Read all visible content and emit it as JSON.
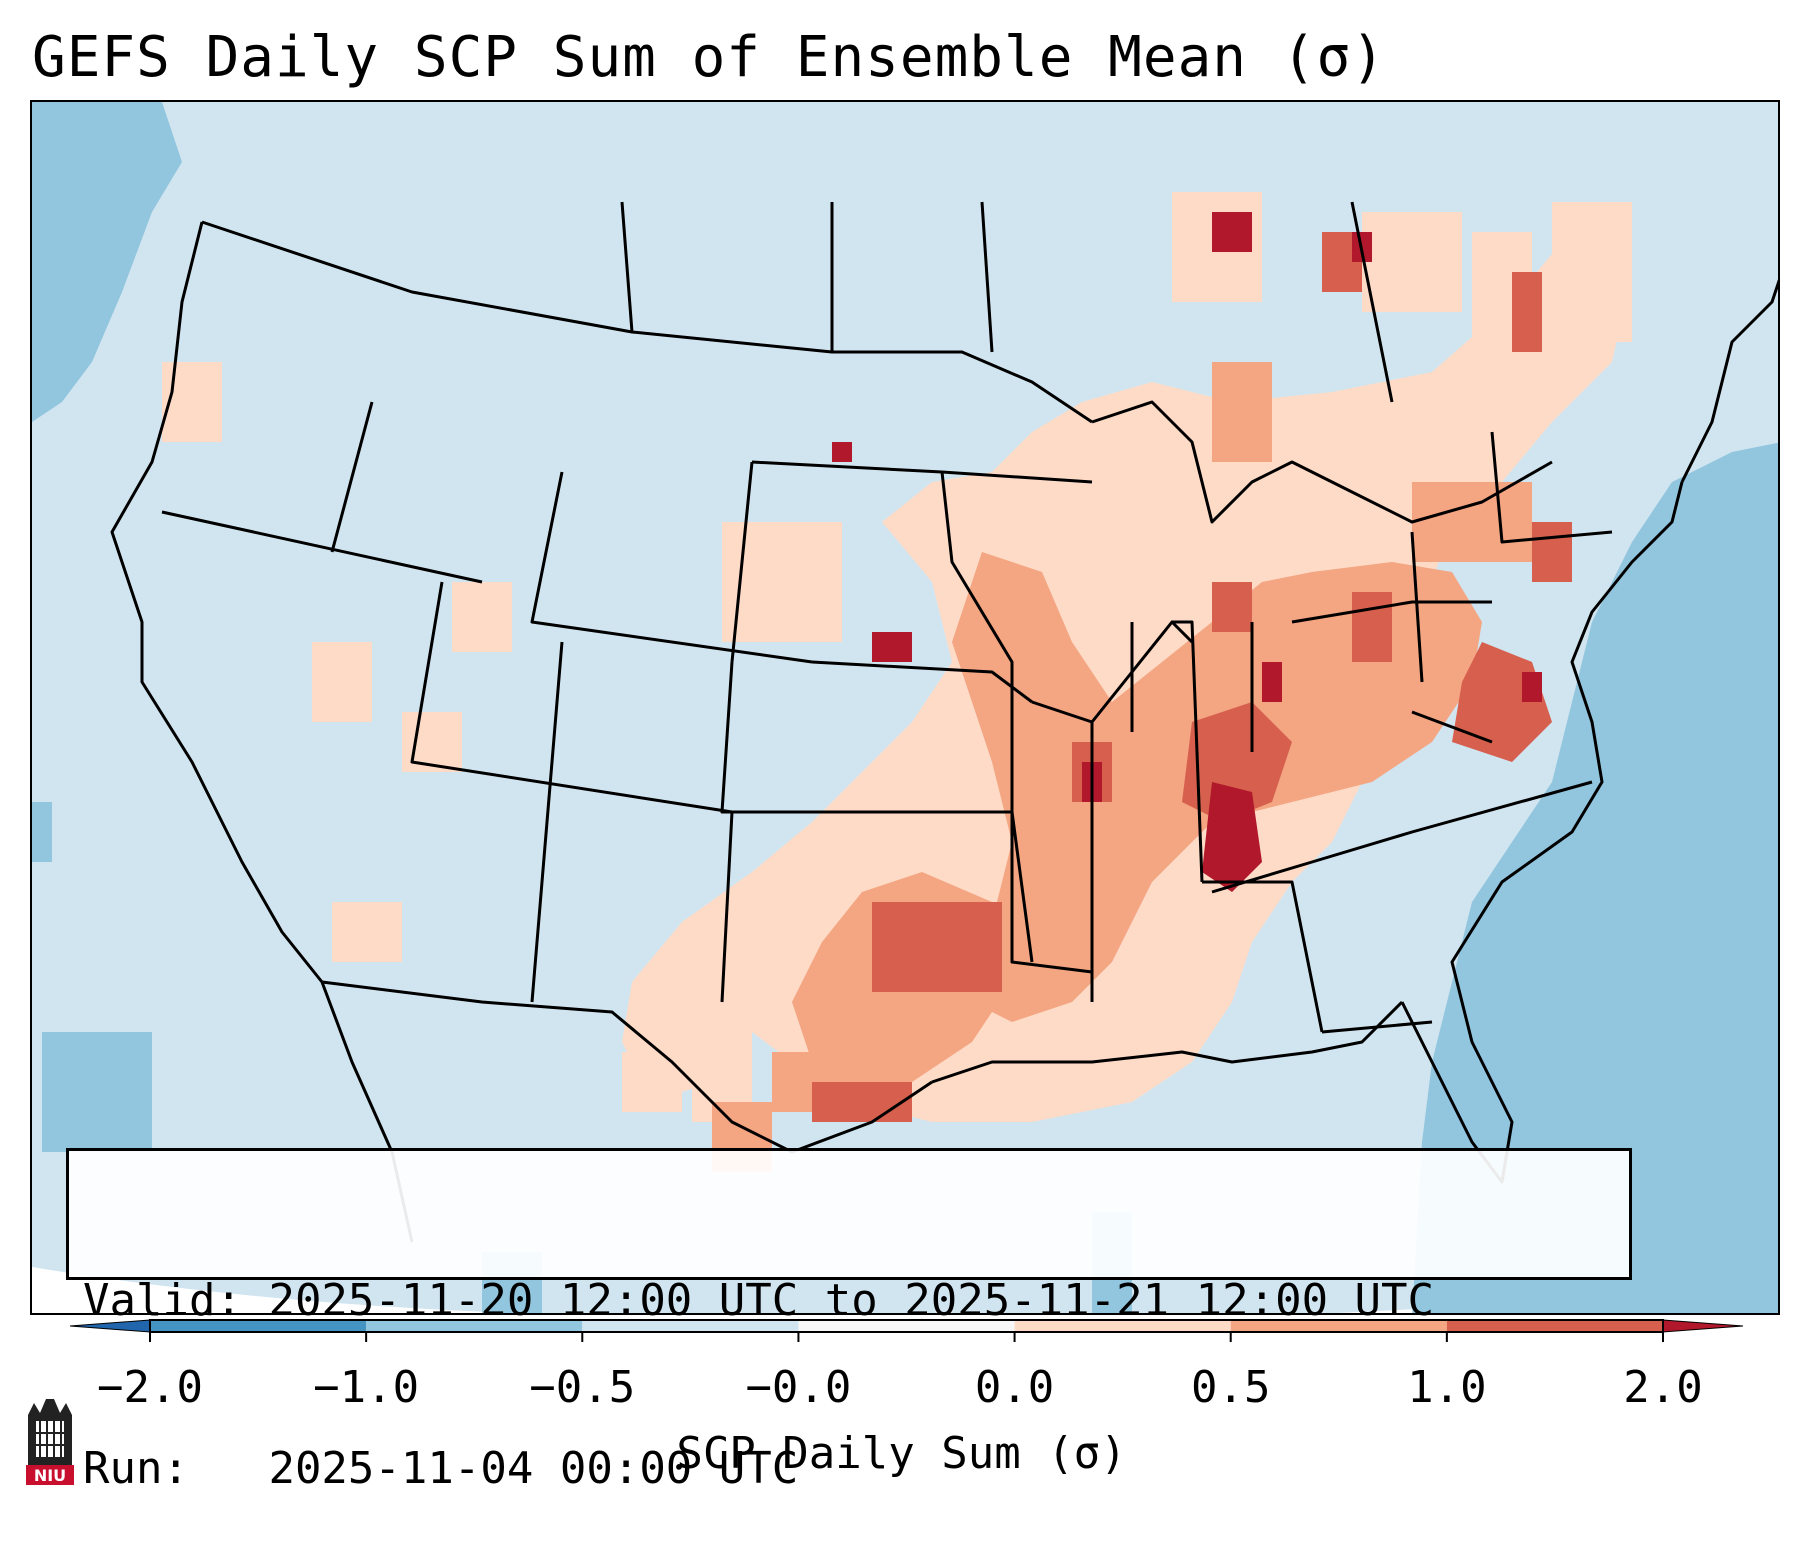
{
  "title": "GEFS Daily SCP Sum of Ensemble Mean (σ)",
  "info": {
    "valid_label": "Valid:",
    "valid_value": "2025-11-20 12:00 UTC to 2025-11-21 12:00 UTC",
    "run_label": "Run:",
    "run_value": "2025-11-04 00:00 UTC"
  },
  "colorbar": {
    "label": "SCP Daily Sum (σ)",
    "ticks": [
      "−2.0",
      "−1.0",
      "−0.5",
      "−0.0",
      "0.0",
      "0.5",
      "1.0",
      "2.0"
    ],
    "bins": [
      {
        "range": "< -2.0",
        "color": "#2166ac"
      },
      {
        "range": "-2.0 to -1.0",
        "color": "#4393c3"
      },
      {
        "range": "-1.0 to -0.5",
        "color": "#92c5de"
      },
      {
        "range": "-0.5 to -0.0",
        "color": "#d1e5f0"
      },
      {
        "range": "-0.0 to 0.0",
        "color": "#f7f7f7"
      },
      {
        "range": "0.0 to 0.5",
        "color": "#fddbc7"
      },
      {
        "range": "0.5 to 1.0",
        "color": "#f4a582"
      },
      {
        "range": "1.0 to 2.0",
        "color": "#d6604d"
      },
      {
        "range": "> 2.0",
        "color": "#b2182b"
      }
    ]
  },
  "logo": {
    "name": "niu-logo-icon",
    "text": "NIU",
    "color": "#c8102e"
  }
}
